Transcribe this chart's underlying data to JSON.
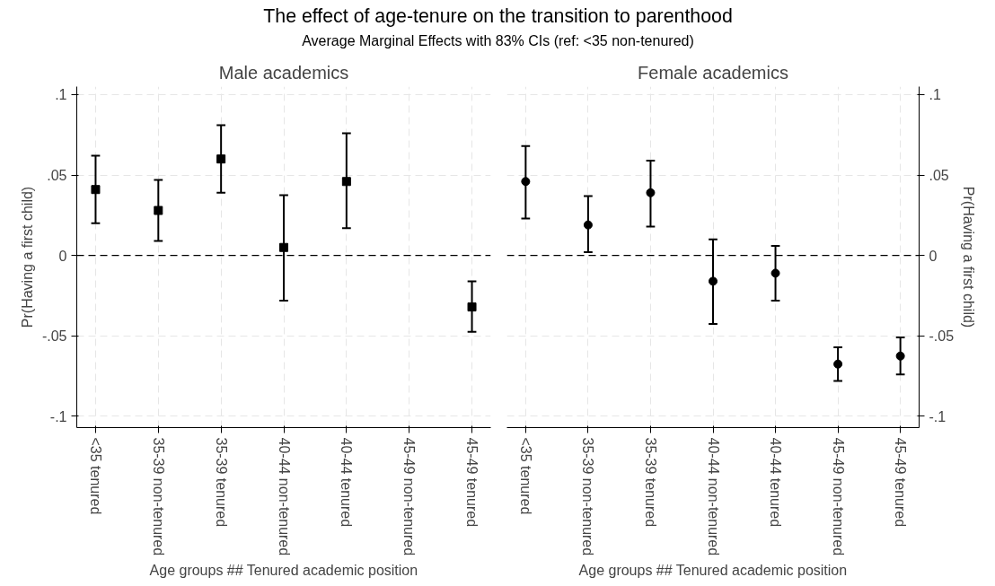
{
  "chart_data": [
    {
      "type": "scatter",
      "title": "Male academics",
      "annotations": [
        "The effect of age-tenure on the transition to parenthood",
        "Average Marginal Effects with 83% CIs (ref: <35 non-tenured)"
      ],
      "xlabel": "Age groups ## Tenured academic position",
      "ylabel": "Pr(Having a first child)",
      "categories": [
        "<35 tenured",
        "35-39 non-tenured",
        "35-39 tenured",
        "40-44 non-tenured",
        "40-44 tenured",
        "45-49 non-tenured",
        "45-49 tenured"
      ],
      "series": [
        {
          "color": "#000000",
          "values": [
            0.041,
            0.028,
            0.06,
            0.005,
            0.046,
            null,
            -0.032
          ],
          "errors": [
            [
              0.02,
              0.062
            ],
            [
              0.009,
              0.047
            ],
            [
              0.039,
              0.081
            ],
            [
              -0.028,
              0.0375
            ],
            [
              0.017,
              0.076
            ],
            null,
            [
              -0.0475,
              -0.016
            ]
          ]
        }
      ],
      "marker": "square",
      "ylim": [
        -0.107,
        0.105
      ],
      "yticks": [
        {
          "value": -0.1,
          "label": "-.1"
        },
        {
          "value": -0.05,
          "label": "-.05"
        },
        0,
        {
          "value": 0.05,
          "label": ".05"
        },
        {
          "value": 0.1,
          "label": ".1"
        }
      ],
      "ref_lines": [
        {
          "axis": "y",
          "value": 0,
          "line_style": "dashed",
          "color": "#000000"
        }
      ],
      "grid": true
    },
    {
      "type": "scatter",
      "title": "Female academics",
      "xlabel": "Age groups ## Tenured academic position",
      "ylabel": "Pr(Having a first child)",
      "categories": [
        "<35 tenured",
        "35-39 non-tenured",
        "35-39 tenured",
        "40-44 non-tenured",
        "40-44 tenured",
        "45-49 non-tenured",
        "45-49 tenured"
      ],
      "series": [
        {
          "color": "#000000",
          "values": [
            0.046,
            0.019,
            0.039,
            -0.016,
            -0.011,
            -0.0675,
            -0.0625
          ],
          "errors": [
            [
              0.023,
              0.068
            ],
            [
              0.002,
              0.037
            ],
            [
              0.018,
              0.059
            ],
            [
              -0.0425,
              0.01
            ],
            [
              -0.028,
              0.006
            ],
            [
              -0.078,
              -0.057
            ],
            [
              -0.074,
              -0.051
            ]
          ]
        }
      ],
      "marker": "circle",
      "ylim": [
        -0.107,
        0.105
      ],
      "yticks": [
        {
          "value": -0.1,
          "label": "-.1"
        },
        {
          "value": -0.05,
          "label": "-.05"
        },
        0,
        {
          "value": 0.05,
          "label": ".05"
        },
        {
          "value": 0.1,
          "label": ".1"
        }
      ],
      "ref_lines": [
        {
          "axis": "y",
          "value": 0,
          "line_style": "dashed",
          "color": "#000000"
        }
      ],
      "grid": true
    }
  ]
}
